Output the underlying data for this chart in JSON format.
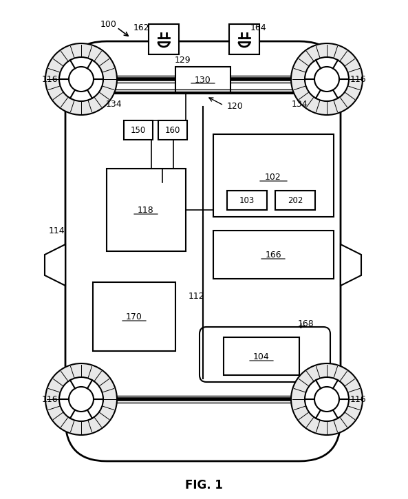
{
  "fig_label": "FIG. 1",
  "background_color": "#ffffff",
  "line_color": "#000000",
  "label_100": "100",
  "label_112": "112",
  "label_114": "114",
  "label_116": "116",
  "label_118": "118",
  "label_120": "120",
  "label_129": "129",
  "label_130": "130",
  "label_134": "134",
  "label_150": "150",
  "label_160": "160",
  "label_162": "162",
  "label_164": "164",
  "label_166": "166",
  "label_168": "168",
  "label_170": "170",
  "label_102": "102",
  "label_103": "103",
  "label_202": "202",
  "label_104": "104"
}
